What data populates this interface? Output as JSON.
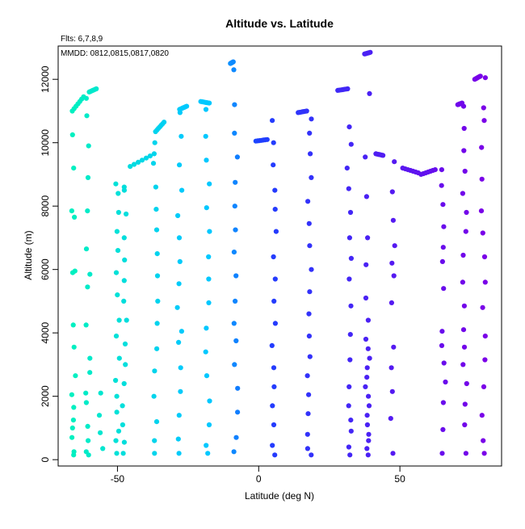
{
  "chart_data": {
    "type": "scatter",
    "title": "Altitude vs. Latitude",
    "subtitle_1": "Flts: 6,7,8,9",
    "subtitle_2": "MMDD: 0812,0815,0817,0820",
    "xlabel": "Latitude (deg N)",
    "ylabel": "Altitude (m)",
    "xlim": [
      -71,
      86
    ],
    "ylim": [
      -200,
      13050
    ],
    "x_ticks": [
      -50,
      0,
      50
    ],
    "y_ticks": [
      0,
      2000,
      4000,
      6000,
      8000,
      10000,
      12000
    ],
    "x_tick_labels": [
      "-50",
      "0",
      "50"
    ],
    "y_tick_labels": [
      "0",
      "2000",
      "4000",
      "6000",
      "8000",
      "10000",
      "12000"
    ],
    "grid": false,
    "legend": "none",
    "color_scale": {
      "low_lat_color": "#00f0c0",
      "mid_lat_color": "#1e40ff",
      "high_lat_color": "#7a00e8",
      "note": "points colored by latitude"
    },
    "columns": [
      {
        "x": -65.5,
        "y": [
          150,
          250,
          700,
          1000,
          1250,
          1650,
          2050,
          2650,
          3550,
          4250,
          5900,
          5950,
          7650,
          7850,
          9200,
          10250
        ]
      },
      {
        "x": -60.5,
        "y": [
          150,
          250,
          600,
          1050,
          1800,
          2100,
          2750,
          3200,
          4250,
          5450,
          5850,
          6650,
          7850,
          8900,
          9900,
          10850,
          11400
        ]
      },
      {
        "x": -56.0,
        "y": [
          350,
          850,
          1400,
          2100
        ]
      },
      {
        "x": -50.0,
        "y": [
          200,
          600,
          900,
          1500,
          2000,
          2500,
          3200,
          3900,
          4400,
          5200,
          5900,
          6600,
          7200,
          7800,
          8400,
          8700
        ]
      },
      {
        "x": -47.5,
        "y": [
          200,
          550,
          1100,
          1700,
          2400,
          3000,
          3650,
          4400,
          5000,
          5650,
          6300,
          7000,
          7750,
          8500,
          8600
        ]
      },
      {
        "x": -36.5,
        "y": [
          200,
          600,
          1200,
          2000,
          2800,
          3500,
          4300,
          5000,
          5800,
          6500,
          7250,
          7900,
          8600,
          9350,
          10000
        ]
      },
      {
        "x": -28.0,
        "y": [
          200,
          650,
          1400,
          2150,
          2900,
          3700,
          4050,
          4800,
          5550,
          6250,
          7000,
          7700,
          8500,
          9300,
          10200,
          10950
        ]
      },
      {
        "x": -18.0,
        "y": [
          200,
          450,
          1100,
          1850,
          2650,
          3400,
          4150,
          4950,
          5700,
          6400,
          7200,
          7950,
          8700,
          9450,
          10200,
          11050
        ]
      },
      {
        "x": -8.0,
        "y": [
          250,
          700,
          1500,
          2250,
          3000,
          3750,
          4300,
          5000,
          5800,
          6550,
          7250,
          8000,
          8750,
          9550,
          10300,
          11200,
          12300
        ]
      },
      {
        "x": 5.5,
        "y": [
          150,
          450,
          1100,
          1700,
          2300,
          2900,
          3600,
          4300,
          5000,
          5700,
          6400,
          7200,
          7900,
          8500,
          9300,
          10000,
          10700
        ]
      },
      {
        "x": 18.0,
        "y": [
          150,
          350,
          800,
          1450,
          2050,
          2650,
          3250,
          3900,
          4600,
          5300,
          6000,
          6750,
          7450,
          8150,
          8900,
          9650,
          10300,
          10750
        ]
      },
      {
        "x": 32.0,
        "y": [
          150,
          400,
          900,
          1250,
          1700,
          2300,
          3150,
          3950,
          4850,
          5700,
          6350,
          7000,
          7800,
          8550,
          9200,
          9950,
          10500
        ]
      },
      {
        "x": 38.5,
        "y": [
          150,
          350,
          600,
          800,
          1100,
          1400,
          1700,
          2000,
          2300,
          2600,
          2900,
          3200,
          3500,
          3800,
          4400,
          5100,
          6150,
          7000,
          8300,
          9550,
          11550
        ]
      },
      {
        "x": 47.5,
        "y": [
          200,
          1300,
          2150,
          2900,
          3550,
          4950,
          5800,
          6200,
          6750,
          7550,
          8450,
          9400
        ]
      },
      {
        "x": 65.5,
        "y": [
          200,
          950,
          1800,
          2450,
          3050,
          3600,
          4050,
          5400,
          6250,
          6700,
          7350,
          8050,
          8650,
          9150
        ]
      },
      {
        "x": 73.0,
        "y": [
          200,
          1100,
          1750,
          2400,
          3000,
          3550,
          4100,
          4850,
          5600,
          6450,
          7200,
          7800,
          8400,
          9100,
          9750,
          10450,
          11150
        ]
      },
      {
        "x": 79.5,
        "y": [
          200,
          600,
          1400,
          2300,
          3150,
          3900,
          4800,
          5600,
          6400,
          7150,
          7850,
          8850,
          9850,
          10700,
          11100,
          12050
        ]
      }
    ],
    "transits": [
      {
        "from": [
          -66.0,
          11000
        ],
        "to": [
          -62.0,
          11450
        ]
      },
      {
        "from": [
          -60.0,
          11600
        ],
        "to": [
          -57.5,
          11700
        ]
      },
      {
        "from": [
          -45.5,
          9250
        ],
        "to": [
          -37.0,
          9650
        ]
      },
      {
        "from": [
          -36.5,
          10350
        ],
        "to": [
          -33.5,
          10650
        ]
      },
      {
        "from": [
          -28.0,
          11050
        ],
        "to": [
          -25.5,
          11150
        ]
      },
      {
        "from": [
          -20.5,
          11300
        ],
        "to": [
          -17.5,
          11250
        ]
      },
      {
        "from": [
          -10.0,
          12500
        ],
        "to": [
          -9.0,
          12550
        ]
      },
      {
        "from": [
          -1.0,
          10050
        ],
        "to": [
          3.0,
          10100
        ]
      },
      {
        "from": [
          14.0,
          10950
        ],
        "to": [
          17.0,
          11000
        ]
      },
      {
        "from": [
          28.0,
          11650
        ],
        "to": [
          31.5,
          11700
        ]
      },
      {
        "from": [
          37.5,
          12800
        ],
        "to": [
          39.5,
          12850
        ]
      },
      {
        "from": [
          41.5,
          9650
        ],
        "to": [
          44.0,
          9600
        ]
      },
      {
        "from": [
          51.0,
          9200
        ],
        "to": [
          56.5,
          9050
        ]
      },
      {
        "from": [
          57.5,
          9000
        ],
        "to": [
          62.5,
          9150
        ]
      },
      {
        "from": [
          70.5,
          11200
        ],
        "to": [
          72.0,
          11250
        ]
      },
      {
        "from": [
          76.5,
          12000
        ],
        "to": [
          78.5,
          12100
        ]
      }
    ]
  }
}
